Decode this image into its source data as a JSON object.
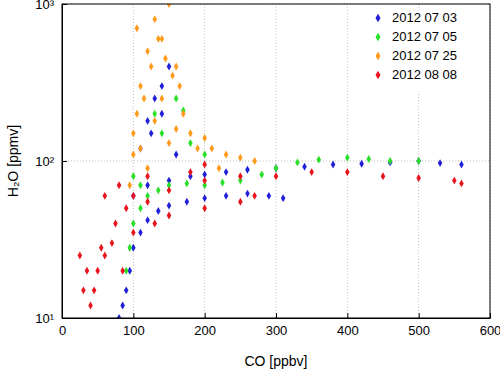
{
  "chart_data": {
    "type": "scatter",
    "x_label": "CO [ppbv]",
    "y_label": "H₂O [ppmv]",
    "xlim": [
      0,
      600
    ],
    "xticks": [
      0,
      100,
      200,
      300,
      400,
      500,
      600
    ],
    "ylim": [
      10,
      1000
    ],
    "yticks": [
      {
        "value": 10,
        "label": "10¹"
      },
      {
        "value": 100,
        "label": "10²"
      },
      {
        "value": 1000,
        "label": "10³"
      }
    ],
    "log": "y",
    "grid": true,
    "legend": "upper right",
    "series": [
      {
        "name": "2012 07 03",
        "color": "#2020d8",
        "marker": "diamond",
        "x": [
          80,
          85,
          90,
          95,
          100,
          110,
          120,
          135,
          150,
          175,
          200,
          230,
          260,
          290,
          310,
          100,
          120,
          150,
          180,
          200,
          230,
          260,
          300,
          340,
          380,
          420,
          460,
          500,
          530,
          560,
          110,
          120,
          130,
          140,
          150,
          140,
          125,
          160
        ],
        "values": [
          10,
          12,
          15,
          20,
          28,
          35,
          42,
          48,
          52,
          55,
          58,
          60,
          62,
          60,
          58,
          60,
          70,
          75,
          80,
          82,
          85,
          88,
          90,
          92,
          95,
          96,
          98,
          100,
          97,
          95,
          120,
          180,
          250,
          300,
          400,
          200,
          150,
          110
        ]
      },
      {
        "name": "2012 07 05",
        "color": "#28e028",
        "marker": "diamond",
        "x": [
          90,
          95,
          100,
          110,
          120,
          135,
          150,
          175,
          200,
          225,
          250,
          280,
          300,
          330,
          360,
          400,
          430,
          460,
          500,
          100,
          110,
          130,
          140,
          160,
          170,
          180,
          200
        ],
        "values": [
          20,
          28,
          40,
          50,
          60,
          65,
          70,
          72,
          70,
          73,
          75,
          82,
          90,
          98,
          102,
          105,
          103,
          100,
          100,
          80,
          70,
          200,
          150,
          250,
          210,
          130,
          110
        ]
      },
      {
        "name": "2012 07 25",
        "color": "#ff9a1a",
        "marker": "diamond",
        "x": [
          95,
          100,
          105,
          110,
          115,
          120,
          125,
          130,
          135,
          140,
          145,
          150,
          155,
          160,
          165,
          170,
          180,
          190,
          200,
          210,
          220,
          230,
          250,
          270,
          120,
          110,
          100,
          130,
          140,
          150,
          160,
          105
        ],
        "values": [
          70,
          150,
          200,
          300,
          250,
          500,
          400,
          800,
          600,
          600,
          450,
          1000,
          350,
          400,
          300,
          200,
          150,
          120,
          140,
          120,
          90,
          110,
          105,
          100,
          90,
          120,
          110,
          180,
          250,
          130,
          160,
          700
        ]
      },
      {
        "name": "2012 08 08",
        "color": "#e8141e",
        "marker": "diamond",
        "x": [
          25,
          30,
          35,
          40,
          50,
          60,
          70,
          75,
          85,
          90,
          100,
          120,
          150,
          200,
          250,
          100,
          130,
          150,
          200,
          250,
          270,
          300,
          350,
          400,
          450,
          500,
          550,
          560,
          60,
          80,
          120,
          180,
          200,
          45,
          55
        ],
        "values": [
          25,
          15,
          20,
          12,
          20,
          25,
          30,
          40,
          20,
          50,
          60,
          55,
          65,
          75,
          80,
          35,
          40,
          45,
          50,
          55,
          60,
          80,
          85,
          85,
          80,
          78,
          75,
          72,
          60,
          70,
          80,
          85,
          95,
          15,
          28
        ]
      }
    ]
  }
}
